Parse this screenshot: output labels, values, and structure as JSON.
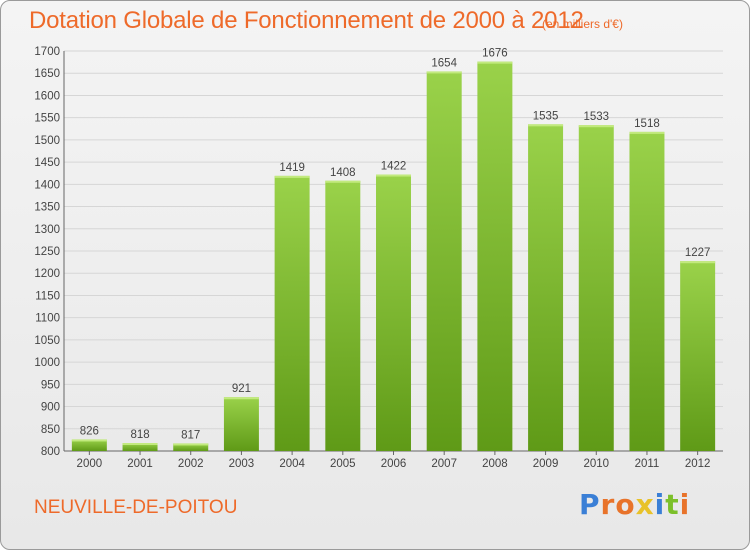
{
  "chart_data": {
    "type": "bar",
    "title": "Dotation Globale de Fonctionnement de 2000 à 2012",
    "subtitle": "(en milliers d'€)",
    "categories": [
      "2000",
      "2001",
      "2002",
      "2003",
      "2004",
      "2005",
      "2006",
      "2007",
      "2008",
      "2009",
      "2010",
      "2011",
      "2012"
    ],
    "values": [
      826,
      818,
      817,
      921,
      1419,
      1408,
      1422,
      1654,
      1676,
      1535,
      1533,
      1518,
      1227
    ],
    "ylim": [
      800,
      1700
    ],
    "yticks": [
      800,
      850,
      900,
      950,
      1000,
      1050,
      1100,
      1150,
      1200,
      1250,
      1300,
      1350,
      1400,
      1450,
      1500,
      1550,
      1600,
      1650,
      1700
    ],
    "grid": true,
    "bar_color": "#7cc02a"
  },
  "footer": {
    "place": "NEUVILLE-DE-POITOU",
    "brand": "Proxiti",
    "brand_letter_colors": [
      "#3a7fd6",
      "#e8732a",
      "#e8732a",
      "#e8c22a",
      "#3a7fd6",
      "#7cc02a",
      "#e8732a"
    ]
  },
  "colors": {
    "accent": "#ee6a2a"
  }
}
